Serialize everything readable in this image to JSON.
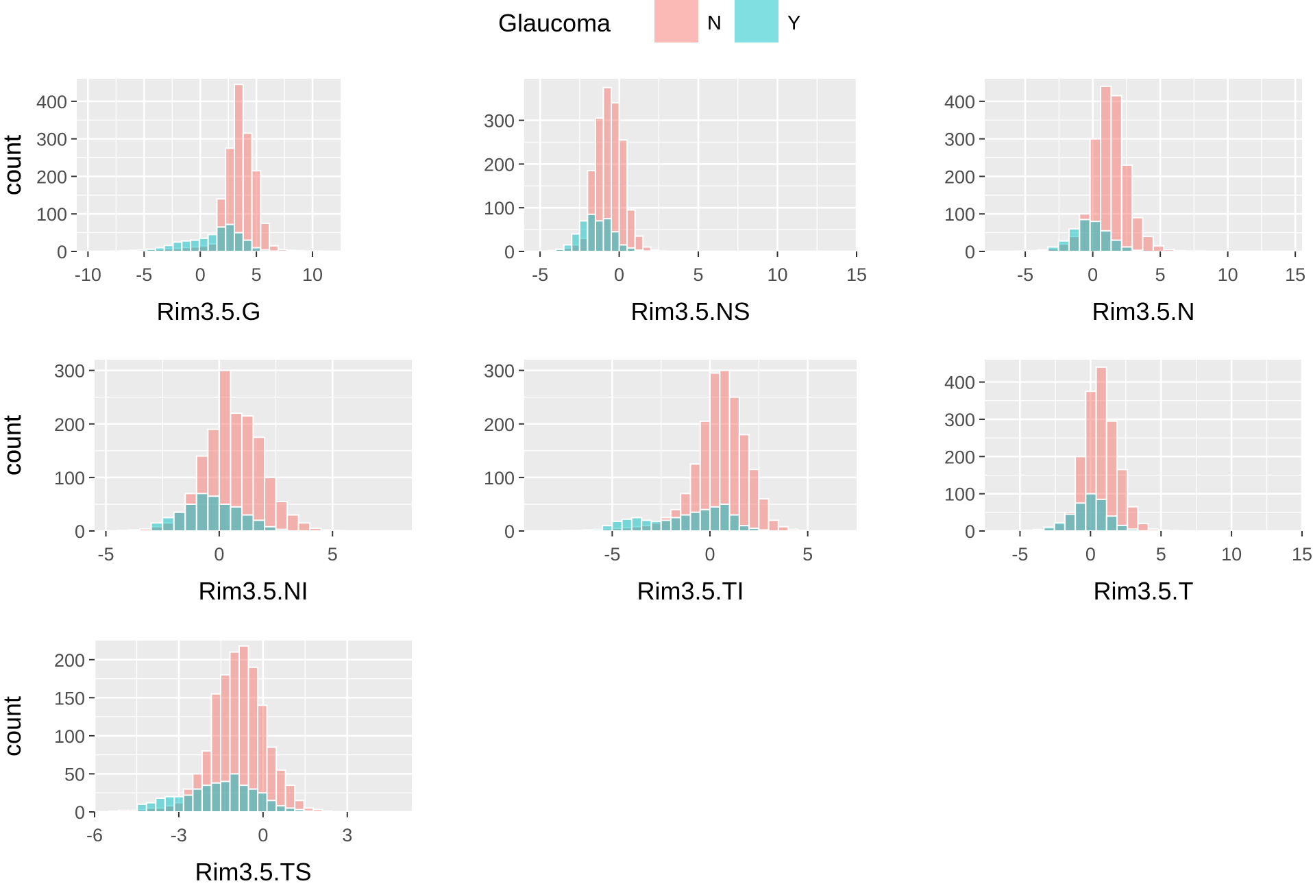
{
  "legend": {
    "title": "Glaucoma",
    "items": [
      {
        "label": "N",
        "color": "#F8766D"
      },
      {
        "label": "Y",
        "color": "#00BFC4"
      }
    ]
  },
  "chart_data": [
    {
      "type": "histogram",
      "xlabel": "Rim3.5.G",
      "ylabel": "count",
      "xlim": [
        -11,
        12.5
      ],
      "ylim": [
        0,
        460
      ],
      "xticks": [
        -10,
        -5,
        0,
        5,
        10
      ],
      "xtick_labels": [
        "-10",
        "-5",
        "0",
        "5",
        "10"
      ],
      "yticks": [
        0,
        100,
        200,
        300,
        400
      ],
      "ytick_labels": [
        "0",
        "100",
        "200",
        "300",
        "400"
      ],
      "bins": {
        "start": -11,
        "width": 0.78
      },
      "series": [
        {
          "name": "N",
          "counts": [
            0,
            0,
            0,
            0,
            1,
            2,
            3,
            4,
            5,
            6,
            7,
            8,
            10,
            12,
            15,
            20,
            140,
            275,
            445,
            315,
            215,
            75,
            15,
            5,
            3,
            2,
            1,
            1,
            0,
            0
          ]
        },
        {
          "name": "Y",
          "counts": [
            0,
            0,
            0,
            0,
            0,
            1,
            2,
            4,
            6,
            10,
            16,
            25,
            28,
            30,
            35,
            45,
            65,
            72,
            50,
            30,
            10,
            4,
            1,
            0,
            0,
            0,
            0,
            0,
            0,
            0
          ]
        }
      ]
    },
    {
      "type": "histogram",
      "xlabel": "Rim3.5.NS",
      "ylabel": "count",
      "xlim": [
        -6,
        15
      ],
      "ylim": [
        0,
        395
      ],
      "xticks": [
        -5,
        0,
        5,
        10,
        15
      ],
      "xtick_labels": [
        "-5",
        "0",
        "5",
        "10",
        "15"
      ],
      "yticks": [
        0,
        100,
        200,
        300
      ],
      "ytick_labels": [
        "0",
        "100",
        "200",
        "300"
      ],
      "bins": {
        "start": -6,
        "width": 0.5
      },
      "series": [
        {
          "name": "N",
          "counts": [
            0,
            0,
            1,
            2,
            5,
            8,
            15,
            30,
            185,
            305,
            375,
            340,
            255,
            95,
            35,
            10,
            3,
            1,
            0,
            0,
            0,
            0,
            0,
            0,
            0,
            0,
            0,
            0,
            0,
            0,
            0,
            0,
            0,
            0,
            0,
            0,
            0,
            0,
            0,
            0,
            0,
            0
          ]
        },
        {
          "name": "Y",
          "counts": [
            0,
            0,
            0,
            0,
            5,
            15,
            40,
            70,
            85,
            70,
            75,
            45,
            15,
            8,
            3,
            1,
            0,
            0,
            0,
            0,
            0,
            0,
            0,
            0,
            0,
            0,
            0,
            0,
            0,
            0,
            0,
            0,
            0,
            0,
            0,
            0,
            0,
            0,
            0,
            0,
            0,
            0
          ]
        }
      ]
    },
    {
      "type": "histogram",
      "xlabel": "Rim3.5.N",
      "ylabel": "count",
      "xlim": [
        -8,
        15.5
      ],
      "ylim": [
        0,
        460
      ],
      "xticks": [
        -5,
        0,
        5,
        10,
        15
      ],
      "xtick_labels": [
        "-5",
        "0",
        "5",
        "10",
        "15"
      ],
      "yticks": [
        0,
        100,
        200,
        300,
        400
      ],
      "ytick_labels": [
        "0",
        "100",
        "200",
        "300",
        "400"
      ],
      "bins": {
        "start": -8,
        "width": 0.78
      },
      "series": [
        {
          "name": "N",
          "counts": [
            0,
            0,
            0,
            1,
            2,
            4,
            8,
            20,
            40,
            100,
            300,
            440,
            415,
            230,
            90,
            40,
            15,
            5,
            2,
            1,
            1,
            0,
            0,
            0,
            0,
            0,
            0,
            0,
            0,
            0
          ]
        },
        {
          "name": "Y",
          "counts": [
            0,
            0,
            0,
            0,
            1,
            3,
            12,
            28,
            60,
            85,
            80,
            55,
            30,
            12,
            3,
            0,
            0,
            0,
            0,
            0,
            0,
            0,
            0,
            0,
            0,
            0,
            0,
            0,
            0,
            0
          ]
        }
      ]
    },
    {
      "type": "histogram",
      "xlabel": "Rim3.5.NI",
      "ylabel": "count",
      "xlim": [
        -5.5,
        8.5
      ],
      "ylim": [
        0,
        320
      ],
      "xticks": [
        -5,
        0,
        5
      ],
      "xtick_labels": [
        "-5",
        "0",
        "5"
      ],
      "yticks": [
        0,
        100,
        200,
        300
      ],
      "ytick_labels": [
        "0",
        "100",
        "200",
        "300"
      ],
      "bins": {
        "start": -5,
        "width": 0.5
      },
      "series": [
        {
          "name": "N",
          "counts": [
            0,
            1,
            2,
            4,
            8,
            15,
            35,
            70,
            140,
            190,
            300,
            220,
            215,
            175,
            100,
            55,
            30,
            15,
            5,
            2,
            1,
            0,
            0,
            0,
            0,
            0
          ]
        },
        {
          "name": "Y",
          "counts": [
            0,
            0,
            0,
            0,
            15,
            25,
            35,
            50,
            70,
            65,
            50,
            45,
            30,
            20,
            8,
            3,
            0,
            0,
            0,
            0,
            0,
            0,
            0,
            0,
            0,
            0
          ]
        }
      ]
    },
    {
      "type": "histogram",
      "xlabel": "Rim3.5.TI",
      "ylabel": "count",
      "xlim": [
        -9.5,
        7.5
      ],
      "ylim": [
        0,
        320
      ],
      "xticks": [
        -5,
        0,
        5
      ],
      "xtick_labels": [
        "-5",
        "0",
        "5"
      ],
      "yticks": [
        0,
        100,
        200,
        300
      ],
      "ytick_labels": [
        "0",
        "100",
        "200",
        "300"
      ],
      "bins": {
        "start": -9,
        "width": 0.5
      },
      "series": [
        {
          "name": "N",
          "counts": [
            0,
            0,
            0,
            1,
            1,
            2,
            2,
            4,
            5,
            6,
            8,
            10,
            15,
            25,
            40,
            70,
            125,
            205,
            295,
            300,
            250,
            180,
            115,
            60,
            20,
            8,
            3,
            1,
            0,
            0,
            0,
            0,
            0,
            0
          ]
        },
        {
          "name": "Y",
          "counts": [
            0,
            0,
            0,
            0,
            0,
            1,
            3,
            10,
            18,
            22,
            25,
            20,
            18,
            20,
            25,
            30,
            35,
            40,
            45,
            50,
            30,
            10,
            5,
            2,
            0,
            0,
            0,
            0,
            0,
            0,
            0,
            0,
            0,
            0
          ]
        }
      ]
    },
    {
      "type": "histogram",
      "xlabel": "Rim3.5.T",
      "ylabel": "count",
      "xlim": [
        -7.5,
        15
      ],
      "ylim": [
        0,
        460
      ],
      "xticks": [
        -5,
        0,
        5,
        10,
        15
      ],
      "xtick_labels": [
        "-5",
        "0",
        "5",
        "10",
        "15"
      ],
      "yticks": [
        0,
        100,
        200,
        300,
        400
      ],
      "ytick_labels": [
        "0",
        "100",
        "200",
        "300",
        "400"
      ],
      "bins": {
        "start": -7,
        "width": 0.74
      },
      "series": [
        {
          "name": "N",
          "counts": [
            0,
            0,
            1,
            2,
            4,
            8,
            20,
            50,
            200,
            375,
            440,
            295,
            165,
            65,
            20,
            5,
            2,
            1,
            0,
            0,
            0,
            0,
            0,
            0,
            0,
            0,
            0,
            0,
            0,
            0
          ]
        },
        {
          "name": "Y",
          "counts": [
            0,
            0,
            0,
            1,
            3,
            10,
            22,
            45,
            75,
            100,
            85,
            40,
            15,
            5,
            0,
            0,
            0,
            0,
            0,
            0,
            0,
            0,
            0,
            0,
            0,
            0,
            0,
            0,
            0,
            0
          ]
        }
      ]
    },
    {
      "type": "histogram",
      "xlabel": "Rim3.5.TS",
      "ylabel": "count",
      "xlim": [
        -6,
        5.3
      ],
      "ylim": [
        0,
        225
      ],
      "xticks": [
        -6,
        -3,
        0,
        3
      ],
      "xtick_labels": [
        "-6",
        "-3",
        "0",
        "3"
      ],
      "yticks": [
        0,
        50,
        100,
        150,
        200
      ],
      "ytick_labels": [
        "0",
        "50",
        "100",
        "150",
        "200"
      ],
      "bins": {
        "start": -5.8,
        "width": 0.33
      },
      "series": [
        {
          "name": "N",
          "counts": [
            0,
            1,
            2,
            2,
            3,
            5,
            5,
            8,
            12,
            30,
            50,
            80,
            155,
            180,
            210,
            218,
            190,
            140,
            85,
            55,
            35,
            15,
            5,
            3,
            1,
            0,
            0,
            0,
            0,
            0,
            0,
            0,
            0,
            0,
            0
          ]
        },
        {
          "name": "Y",
          "counts": [
            0,
            0,
            0,
            0,
            10,
            12,
            18,
            20,
            20,
            22,
            30,
            35,
            38,
            40,
            50,
            35,
            30,
            25,
            15,
            8,
            5,
            3,
            1,
            0,
            0,
            0,
            0,
            0,
            0,
            0,
            0,
            0,
            0,
            0,
            0
          ]
        }
      ]
    }
  ]
}
